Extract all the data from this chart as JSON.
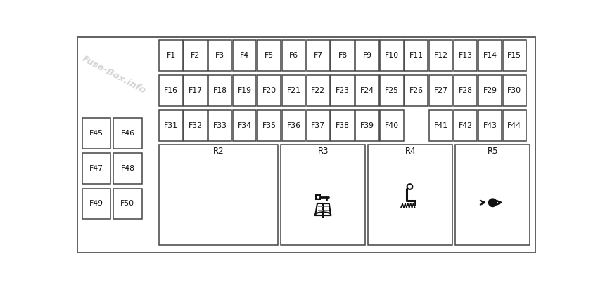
{
  "bg_color": "#ffffff",
  "box_color": "#ffffff",
  "edge_color": "#444444",
  "text_color": "#111111",
  "watermark_text": "Fuse-Box.info",
  "watermark_color": "#cccccc",
  "row1_fuses": [
    "F1",
    "F2",
    "F3",
    "F4",
    "F5",
    "F6",
    "F7",
    "F8",
    "F9",
    "F10",
    "F11",
    "F12",
    "F13",
    "F14",
    "F15"
  ],
  "row2_fuses": [
    "F16",
    "F17",
    "F18",
    "F19",
    "F20",
    "F21",
    "F22",
    "F23",
    "F24",
    "F25",
    "F26",
    "F27",
    "F28",
    "F29",
    "F30"
  ],
  "row3_fuses": [
    "F31",
    "F32",
    "F33",
    "F34",
    "F35",
    "F36",
    "F37",
    "F38",
    "F39",
    "F40",
    "",
    "F41",
    "F42",
    "F43",
    "F44"
  ],
  "left_col1": [
    "F45",
    "F47",
    "F49"
  ],
  "left_col2": [
    "F46",
    "F48",
    "F50"
  ],
  "relays": [
    "R2",
    "R3",
    "R4",
    "R5"
  ]
}
